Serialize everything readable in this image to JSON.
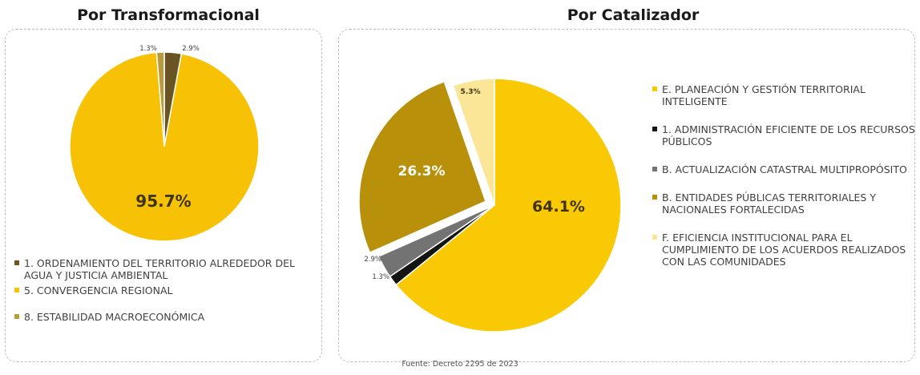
{
  "chart_data": [
    {
      "type": "pie",
      "title": "Por Transformacional",
      "slices": [
        {
          "label": "1. ORDENAMIENTO DEL TERRITORIO ALREDEDOR DEL AGUA Y JUSTICIA AMBIENTAL",
          "value": 2.9,
          "value_label": "2.9%",
          "color": "#695524"
        },
        {
          "label": "5. CONVERGENCIA REGIONAL",
          "value": 95.7,
          "value_label": "95.7%",
          "color": "#f7c205"
        },
        {
          "label": "8. ESTABILIDAD MACROECONÓMICA",
          "value": 1.3,
          "value_label": "1.3%",
          "color": "#b89b3d"
        }
      ]
    },
    {
      "type": "pie",
      "title": "Por Catalizador",
      "slices": [
        {
          "label": "E. PLANEACIÓN Y GESTIÓN TERRITORIAL INTELIGENTE",
          "value": 64.1,
          "value_label": "64.1%",
          "color": "#f8c904"
        },
        {
          "label": "1. ADMINISTRACIÓN EFICIENTE DE LOS RECURSOS PÚBLICOS",
          "value": 1.3,
          "value_label": "1.3%",
          "color": "#141414"
        },
        {
          "label": "B. ACTUALIZACIÓN CATASTRAL MULTIPROPÓSITO",
          "value": 2.9,
          "value_label": "2.9%",
          "color": "#737373"
        },
        {
          "label": "B. ENTIDADES PÚBLICAS TERRITORIALES Y NACIONALES FORTALECIDAS",
          "value": 26.3,
          "value_label": "26.3%",
          "color": "#b8900a"
        },
        {
          "label": "F. EFICIENCIA INSTITUCIONAL PARA EL CUMPLIMIENTO DE LOS ACUERDOS REALIZADOS CON LAS COMUNIDADES",
          "value": 5.3,
          "value_label": "5.3%",
          "color": "#fbe698"
        }
      ]
    }
  ],
  "source": "Fuente: Decreto 2295 de 2023"
}
